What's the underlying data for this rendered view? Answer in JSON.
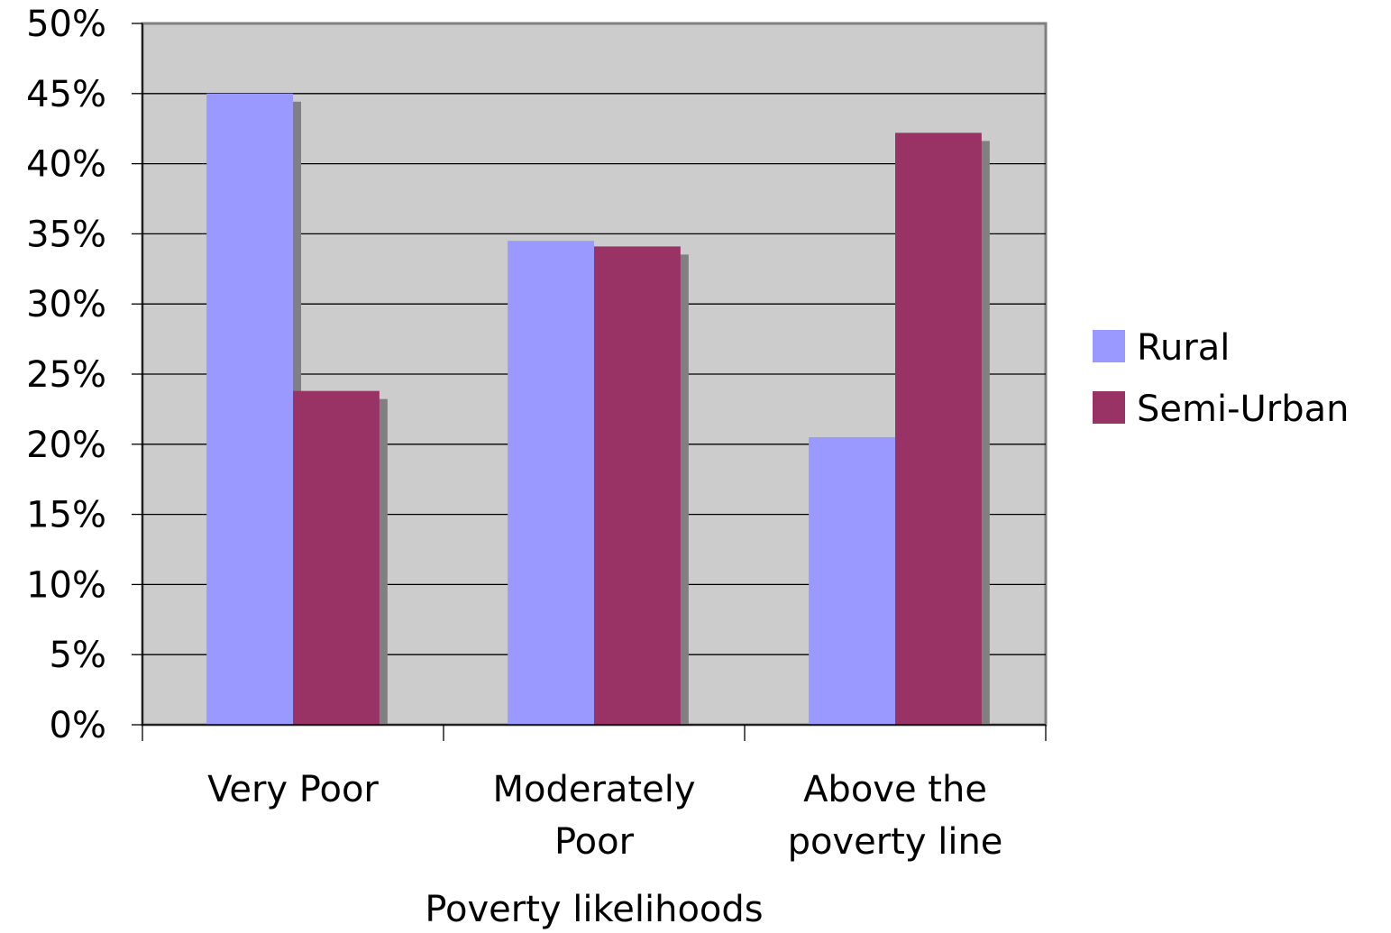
{
  "chart_data": {
    "type": "bar",
    "title": "",
    "xlabel": "Poverty likelihoods",
    "ylabel": "",
    "categories": [
      [
        "Very Poor"
      ],
      [
        "Moderately",
        "Poor"
      ],
      [
        "Above the",
        "poverty line"
      ]
    ],
    "series": [
      {
        "name": "Rural",
        "values": [
          0.45,
          0.345,
          0.205
        ],
        "color": "#9999ff"
      },
      {
        "name": "Semi-Urban",
        "values": [
          0.238,
          0.341,
          0.422
        ],
        "color": "#993366"
      }
    ],
    "ylim": [
      0,
      0.5
    ],
    "y_ticks": [
      "0%",
      "5%",
      "10%",
      "15%",
      "20%",
      "25%",
      "30%",
      "35%",
      "40%",
      "45%",
      "50%"
    ],
    "grid": true,
    "legend_position": "right",
    "plot_background": "#c0c0c0",
    "shadow_color": "#808080"
  }
}
